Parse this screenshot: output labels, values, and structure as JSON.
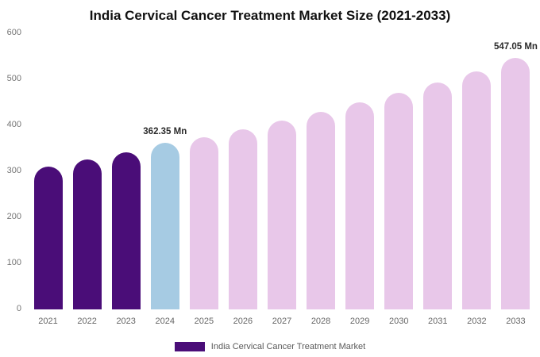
{
  "title": "India Cervical Cancer Treatment Market Size (2021-2033)",
  "legend": {
    "label": "India Cervical Cancer Treatment Market",
    "swatch_color": "#4a0d78"
  },
  "colors": {
    "historic_purple": "#4a0d78",
    "current_blue": "#a6cbe3",
    "forecast_pink": "#e8c7e9",
    "axis_text": "#757575",
    "annotation_text": "#2b2b2b"
  },
  "chart_data": {
    "type": "bar",
    "title": "India Cervical Cancer Treatment Market Size (2021-2033)",
    "categories": [
      "2021",
      "2022",
      "2023",
      "2024",
      "2025",
      "2026",
      "2027",
      "2028",
      "2029",
      "2030",
      "2031",
      "2032",
      "2033"
    ],
    "values": [
      310,
      326,
      342,
      362.35,
      375,
      392,
      410,
      430,
      450,
      471,
      493,
      517,
      547.05
    ],
    "unit": "Mn",
    "bar_colors": [
      "#4a0d78",
      "#4a0d78",
      "#4a0d78",
      "#a6cbe3",
      "#e8c7e9",
      "#e8c7e9",
      "#e8c7e9",
      "#e8c7e9",
      "#e8c7e9",
      "#e8c7e9",
      "#e8c7e9",
      "#e8c7e9",
      "#e8c7e9"
    ],
    "annotations": [
      {
        "category": "2024",
        "text": "362.35 Mn"
      },
      {
        "category": "2033",
        "text": "547.05 Mn"
      }
    ],
    "ylim": [
      0,
      600
    ],
    "yticks": [
      0,
      100,
      200,
      300,
      400,
      500,
      600
    ],
    "grid": false,
    "xlabel": "",
    "ylabel": "",
    "legend_position": "bottom",
    "legend_entries": [
      "India Cervical Cancer Treatment Market"
    ]
  }
}
